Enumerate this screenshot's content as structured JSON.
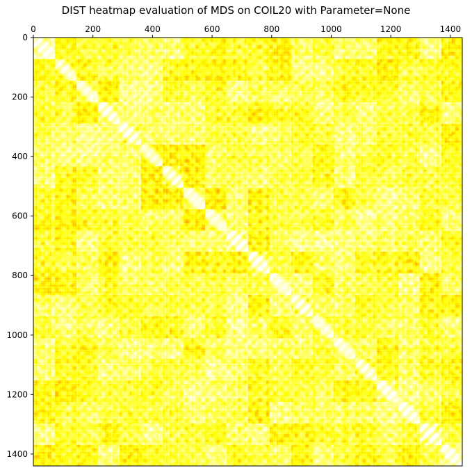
{
  "chart_data": {
    "type": "heatmap",
    "title": "DIST heatmap evaluation of MDS on COIL20 with Parameter=None",
    "xlabel": "",
    "ylabel": "",
    "n": 1440,
    "xlim": [
      0,
      1440
    ],
    "ylim": [
      1440,
      0
    ],
    "x_ticks": [
      0,
      200,
      400,
      600,
      800,
      1000,
      1200,
      1400
    ],
    "y_ticks": [
      0,
      200,
      400,
      600,
      800,
      1000,
      1200,
      1400
    ],
    "x_axis_position": "top",
    "colormap": "hot_r",
    "colors": {
      "low": "#ffffff",
      "mid": "#ffff00",
      "high": "#ff0000"
    },
    "block_size": 72,
    "grid": false,
    "legend": "none"
  }
}
